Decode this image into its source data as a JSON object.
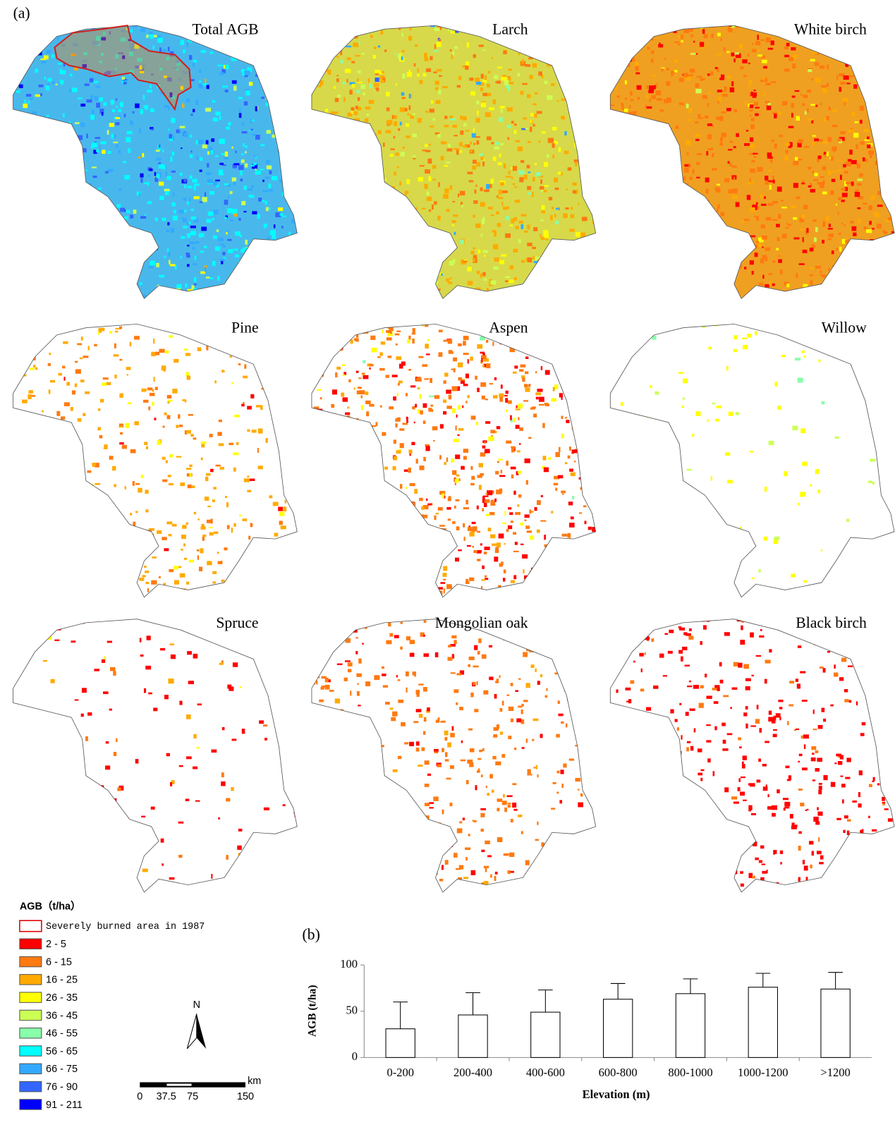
{
  "panel_a": {
    "label": "(a)",
    "maps": [
      "Total AGB",
      "Larch",
      "White birch",
      "Pine",
      "Aspen",
      "Willow",
      "Spruce",
      "Mongolian oak",
      "Black birch"
    ],
    "legend": {
      "title": "AGB（t/ha）",
      "burned": "Severely burned area in 1987",
      "classes": [
        {
          "label": "2 - 5",
          "color": "#ff0000"
        },
        {
          "label": "6 - 15",
          "color": "#ff7a10"
        },
        {
          "label": "16 - 25",
          "color": "#ffaa00"
        },
        {
          "label": "26 - 35",
          "color": "#ffff00"
        },
        {
          "label": "36 - 45",
          "color": "#ccff55"
        },
        {
          "label": "46 - 55",
          "color": "#88ffaa"
        },
        {
          "label": "56 - 65",
          "color": "#00ffff"
        },
        {
          "label": "66 - 75",
          "color": "#33aaff"
        },
        {
          "label": "76 - 90",
          "color": "#3366ff"
        },
        {
          "label": "91 - 211",
          "color": "#0000ff"
        }
      ]
    },
    "north": "N",
    "scale_bar": {
      "ticks": [
        0,
        37.5,
        75,
        150
      ],
      "unit": "km"
    }
  },
  "chart_data": {
    "type": "bar",
    "label": "(b)",
    "categories": [
      "0-200",
      "200-400",
      "400-600",
      "600-800",
      "800-1000",
      "1000-1200",
      ">1200"
    ],
    "values": [
      31,
      46,
      49,
      63,
      69,
      76,
      74
    ],
    "errors": [
      29,
      24,
      24,
      17,
      16,
      15,
      18
    ],
    "color": "#ffffff",
    "x_label": "Elevation (m)",
    "y_label": "AGB (t/ha)",
    "ylim": [
      0,
      100
    ],
    "yticks": [
      0,
      50,
      100
    ]
  }
}
